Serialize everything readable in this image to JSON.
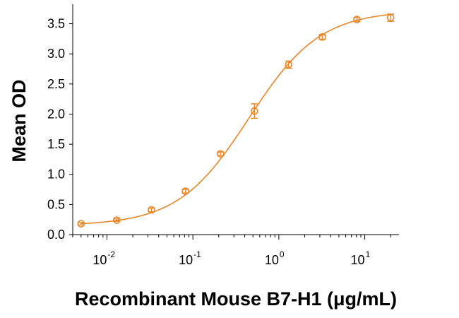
{
  "chart_data": {
    "type": "scatter",
    "title": "",
    "xlabel": "Recombinant Mouse B7-H1 (μg/mL)",
    "ylabel": "Mean OD",
    "xscale": "log",
    "xlim": [
      0.004,
      25
    ],
    "ylim": [
      0,
      3.8
    ],
    "yticks": [
      "0.0",
      "0.5",
      "1.0",
      "1.5",
      "2.0",
      "2.5",
      "3.0",
      "3.5"
    ],
    "xticks": [
      {
        "value": 0.01,
        "base": "10",
        "exp": "-2"
      },
      {
        "value": 0.1,
        "base": "10",
        "exp": "-1"
      },
      {
        "value": 1,
        "base": "10",
        "exp": "0"
      },
      {
        "value": 10,
        "base": "10",
        "exp": "1"
      }
    ],
    "color": "#e8862a",
    "series": [
      {
        "name": "Mean OD",
        "x": [
          0.005,
          0.013,
          0.033,
          0.082,
          0.21,
          0.52,
          1.3,
          3.2,
          8.1,
          20
        ],
        "y": [
          0.18,
          0.24,
          0.41,
          0.72,
          1.34,
          2.05,
          2.82,
          3.28,
          3.57,
          3.6
        ],
        "err": [
          0.02,
          0.02,
          0.03,
          0.03,
          0.03,
          0.12,
          0.06,
          0.04,
          0.03,
          0.06
        ]
      }
    ],
    "fit": {
      "bottom": 0.15,
      "top": 3.72,
      "ec50": 0.45,
      "hill": 1.05
    }
  }
}
